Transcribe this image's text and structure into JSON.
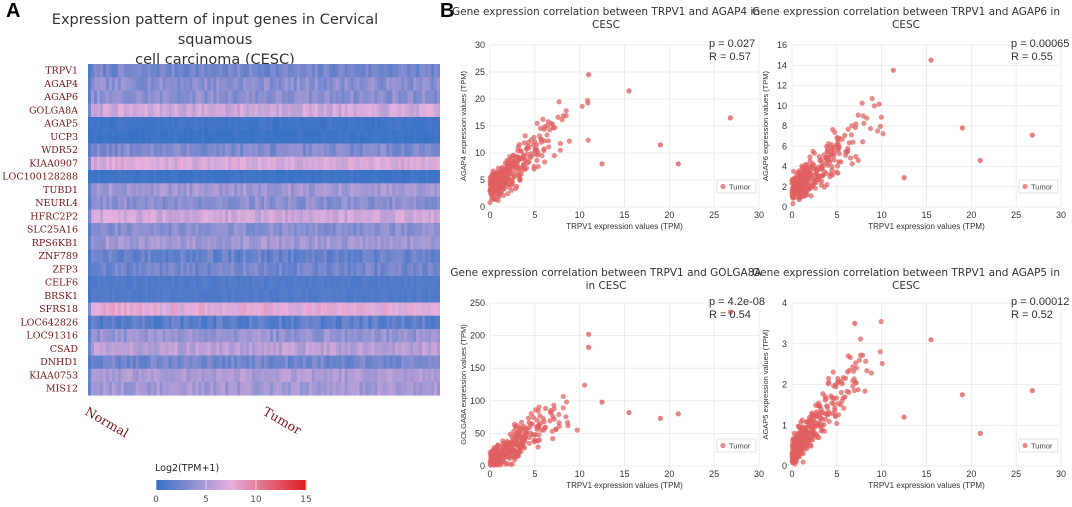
{
  "panels": {
    "a": "A",
    "b": "B"
  },
  "heatmap": {
    "title_line1": "Expression pattern of input genes in Cervical squamous",
    "title_line2": "cell carcinoma (CESC)",
    "genes": [
      "TRPV1",
      "AGAP4",
      "AGAP6",
      "GOLGA8A",
      "AGAP5",
      "UCP3",
      "WDR52",
      "KIAA0907",
      "LOC100128288",
      "TUBD1",
      "NEURL4",
      "HFRC2P2",
      "SLC25A16",
      "RPS6KB1",
      "ZNF789",
      "ZFP3",
      "CELF6",
      "BRSK1",
      "SFRS18",
      "LOC642826",
      "LOC91316",
      "CSAD",
      "DNHD1",
      "KIAA0753",
      "MIS12"
    ],
    "gene_mean_log2tpm": [
      2.5,
      3.5,
      3.5,
      6.5,
      0.3,
      0.1,
      3.0,
      7.0,
      0.2,
      4.5,
      3.5,
      6.5,
      3.5,
      4.5,
      2.0,
      2.5,
      1.0,
      1.0,
      7.5,
      1.5,
      4.0,
      5.5,
      2.5,
      5.0,
      4.5
    ],
    "groups": {
      "normal": "Normal",
      "tumor": "Tumor"
    },
    "legend_title": "Log2(TPM+1)",
    "legend_ticks": [
      "0",
      "5",
      "10",
      "15"
    ],
    "colors": {
      "low": "#3a72c6",
      "mid": "#e6b0dc",
      "high": "#e02020",
      "label": "#7a1515"
    }
  },
  "chart_data": [
    {
      "type": "scatter",
      "title_line1": "Gene expression correlation between TRPV1 and AGAP4 in",
      "title_line2": "CESC",
      "xlabel": "TRPV1 expression values (TPM)",
      "ylabel": "AGAP4 expression values (TPM)",
      "xlim": [
        0,
        30
      ],
      "ylim": [
        0,
        30
      ],
      "xticks": [
        0,
        5,
        10,
        15,
        20,
        25,
        30
      ],
      "yticks": [
        0,
        5,
        10,
        15,
        20,
        25,
        30
      ],
      "p_text": "p = 0.027",
      "r_text": "R = 0.57",
      "legend": "Tumor",
      "seed": 11,
      "n": 300,
      "slope": 1.45,
      "intercept": 3.2,
      "noise": 3.2,
      "outliers": [
        [
          11,
          24.5
        ],
        [
          15.5,
          21.5
        ],
        [
          26.8,
          16.5
        ],
        [
          19,
          11.5
        ],
        [
          21,
          8
        ],
        [
          12.5,
          8
        ]
      ]
    },
    {
      "type": "scatter",
      "title_line1": "Gene expression correlation between TRPV1 and AGAP6 in",
      "title_line2": "CESC",
      "xlabel": "TRPV1 expression values (TPM)",
      "ylabel": "AGAP6 expression values (TPM)",
      "xlim": [
        0,
        30
      ],
      "ylim": [
        0,
        16
      ],
      "xticks": [
        0,
        5,
        10,
        15,
        20,
        25,
        30
      ],
      "yticks": [
        0,
        2,
        4,
        6,
        8,
        10,
        12,
        14,
        16
      ],
      "p_text": "p = 0.00065",
      "r_text": "R = 0.55",
      "legend": "Tumor",
      "seed": 23,
      "n": 300,
      "slope": 0.75,
      "intercept": 1.6,
      "noise": 1.6,
      "outliers": [
        [
          15.5,
          14.5
        ],
        [
          11.3,
          13.5
        ],
        [
          26.8,
          7.1
        ],
        [
          19,
          7.8
        ],
        [
          21,
          4.6
        ],
        [
          12.5,
          2.9
        ]
      ]
    },
    {
      "type": "scatter",
      "title_line1": "Gene expression correlation between TRPV1 and GOLGA8A",
      "title_line2": "in CESC",
      "xlabel": "TRPV1 expression values (TPM)",
      "ylabel": "GOLGA8A expression values (TPM)",
      "xlim": [
        0,
        30
      ],
      "ylim": [
        0,
        250
      ],
      "xticks": [
        0,
        5,
        10,
        15,
        20,
        25,
        30
      ],
      "yticks": [
        0,
        50,
        100,
        150,
        200,
        250
      ],
      "p_text": "p = 4.2e-08",
      "r_text": "R = 0.54",
      "legend": "Tumor",
      "seed": 37,
      "n": 300,
      "slope": 9.5,
      "intercept": 6,
      "noise": 22,
      "outliers": [
        [
          11,
          202
        ],
        [
          11,
          182
        ],
        [
          26.8,
          236
        ],
        [
          15.5,
          82
        ],
        [
          19,
          73
        ],
        [
          21,
          80
        ],
        [
          12.5,
          98
        ]
      ]
    },
    {
      "type": "scatter",
      "title_line1": "Gene expression correlation between TRPV1 and AGAP5 in",
      "title_line2": "CESC",
      "xlabel": "TRPV1 expression values (TPM)",
      "ylabel": "AGAP5 expression values (TPM)",
      "xlim": [
        0,
        30
      ],
      "ylim": [
        0,
        4
      ],
      "xticks": [
        0,
        5,
        10,
        15,
        20,
        25,
        30
      ],
      "yticks": [
        0,
        1,
        2,
        3,
        4
      ],
      "p_text": "p = 0.00012",
      "r_text": "R = 0.52",
      "legend": "Tumor",
      "seed": 53,
      "n": 300,
      "slope": 0.26,
      "intercept": 0.35,
      "noise": 0.45,
      "outliers": [
        [
          7,
          3.5
        ],
        [
          15.5,
          3.1
        ],
        [
          26.8,
          1.85
        ],
        [
          19,
          1.75
        ],
        [
          21,
          0.8
        ],
        [
          12.5,
          1.2
        ]
      ]
    }
  ],
  "scatter_colors": {
    "point": "#e06060",
    "point_stroke": "#c84a4a",
    "grid": "#e8e8e8",
    "text": "#333333"
  }
}
